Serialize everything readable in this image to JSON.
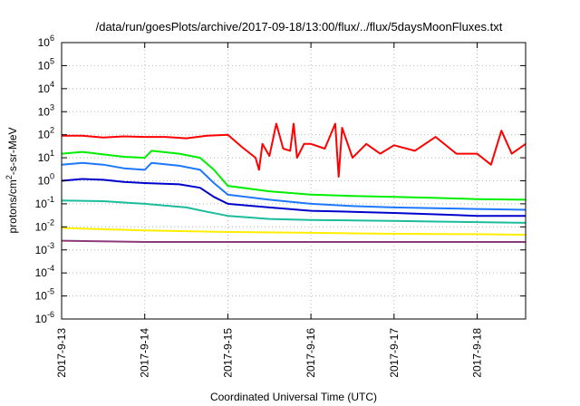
{
  "chart_data": {
    "type": "line",
    "title": "/data/run/goesPlots/archive/2017-09-18/13:00/flux/../flux/5daysMoonFluxes.txt",
    "xlabel": "Coordinated Universal Time (UTC)",
    "ylabel": {
      "pre": "protons/cm",
      "sup": "2",
      "post": "-s-sr-MeV"
    },
    "x_ticks": [
      "2017-9-13",
      "2017-9-14",
      "2017-9-15",
      "2017-9-16",
      "2017-9-17",
      "2017-9-18"
    ],
    "xlim": [
      "2017-09-13 00:00",
      "2017-09-18 14:00"
    ],
    "yscale": "log",
    "ylim": [
      1e-06,
      1000000.0
    ],
    "y_ticks": [
      {
        "base": "10",
        "exp": "-6"
      },
      {
        "base": "10",
        "exp": "-5"
      },
      {
        "base": "10",
        "exp": "-4"
      },
      {
        "base": "10",
        "exp": "-3"
      },
      {
        "base": "10",
        "exp": "-2"
      },
      {
        "base": "10",
        "exp": "-1"
      },
      {
        "base": "10",
        "exp": "0"
      },
      {
        "base": "10",
        "exp": "1"
      },
      {
        "base": "10",
        "exp": "2"
      },
      {
        "base": "10",
        "exp": "3"
      },
      {
        "base": "10",
        "exp": "4"
      },
      {
        "base": "10",
        "exp": "5"
      },
      {
        "base": "10",
        "exp": "6"
      }
    ],
    "grid": true,
    "series": [
      {
        "color": "#ff0000",
        "x": [
          "2017-09-13 00:00",
          "2017-09-13 06:00",
          "2017-09-13 12:00",
          "2017-09-13 18:00",
          "2017-09-14 00:00",
          "2017-09-14 06:00",
          "2017-09-14 12:00",
          "2017-09-14 18:00",
          "2017-09-15 00:00",
          "2017-09-15 04:00",
          "2017-09-15 08:00",
          "2017-09-15 09:00",
          "2017-09-15 10:00",
          "2017-09-15 12:00",
          "2017-09-15 14:00",
          "2017-09-15 16:00",
          "2017-09-15 18:00",
          "2017-09-15 19:00",
          "2017-09-15 20:00",
          "2017-09-15 22:00",
          "2017-09-16 00:00",
          "2017-09-16 04:00",
          "2017-09-16 07:00",
          "2017-09-16 08:00",
          "2017-09-16 09:00",
          "2017-09-16 12:00",
          "2017-09-16 16:00",
          "2017-09-16 20:00",
          "2017-09-17 00:00",
          "2017-09-17 06:00",
          "2017-09-17 12:00",
          "2017-09-17 18:00",
          "2017-09-18 00:00",
          "2017-09-18 04:00",
          "2017-09-18 07:00",
          "2017-09-18 10:00",
          "2017-09-18 14:00"
        ],
        "values": [
          90,
          90,
          75,
          85,
          80,
          80,
          70,
          90,
          100,
          30,
          10,
          3,
          40,
          12,
          300,
          25,
          20,
          300,
          10,
          40,
          40,
          25,
          300,
          1.5,
          200,
          10,
          40,
          15,
          35,
          20,
          80,
          15,
          15,
          5,
          150,
          15,
          40
        ]
      },
      {
        "color": "#00ee00",
        "x": [
          "2017-09-13 00:00",
          "2017-09-13 06:00",
          "2017-09-13 12:00",
          "2017-09-13 18:00",
          "2017-09-14 00:00",
          "2017-09-14 02:00",
          "2017-09-14 10:00",
          "2017-09-14 16:00",
          "2017-09-14 20:00",
          "2017-09-15 00:00",
          "2017-09-15 12:00",
          "2017-09-16 00:00",
          "2017-09-16 12:00",
          "2017-09-17 00:00",
          "2017-09-17 12:00",
          "2017-09-18 00:00",
          "2017-09-18 14:00"
        ],
        "values": [
          15,
          18,
          14,
          11,
          10,
          20,
          15,
          10,
          3,
          0.6,
          0.35,
          0.25,
          0.22,
          0.2,
          0.18,
          0.16,
          0.15
        ]
      },
      {
        "color": "#1e78ff",
        "x": [
          "2017-09-13 00:00",
          "2017-09-13 06:00",
          "2017-09-13 12:00",
          "2017-09-13 18:00",
          "2017-09-14 00:00",
          "2017-09-14 02:00",
          "2017-09-14 10:00",
          "2017-09-14 16:00",
          "2017-09-14 20:00",
          "2017-09-15 00:00",
          "2017-09-15 12:00",
          "2017-09-16 00:00",
          "2017-09-16 12:00",
          "2017-09-17 00:00",
          "2017-09-17 12:00",
          "2017-09-18 00:00",
          "2017-09-18 14:00"
        ],
        "values": [
          5,
          6,
          5,
          3.5,
          3,
          6,
          4.5,
          3,
          0.8,
          0.25,
          0.15,
          0.1,
          0.08,
          0.07,
          0.065,
          0.06,
          0.055
        ]
      },
      {
        "color": "#0000cc",
        "x": [
          "2017-09-13 00:00",
          "2017-09-13 06:00",
          "2017-09-13 12:00",
          "2017-09-13 18:00",
          "2017-09-14 00:00",
          "2017-09-14 10:00",
          "2017-09-14 16:00",
          "2017-09-14 20:00",
          "2017-09-15 00:00",
          "2017-09-15 12:00",
          "2017-09-16 00:00",
          "2017-09-16 12:00",
          "2017-09-17 00:00",
          "2017-09-17 12:00",
          "2017-09-18 00:00",
          "2017-09-18 14:00"
        ],
        "values": [
          1.0,
          1.2,
          1.1,
          0.9,
          0.8,
          0.7,
          0.5,
          0.2,
          0.1,
          0.07,
          0.05,
          0.045,
          0.04,
          0.035,
          0.03,
          0.03
        ]
      },
      {
        "color": "#1abc9c",
        "x": [
          "2017-09-13 00:00",
          "2017-09-13 12:00",
          "2017-09-14 00:00",
          "2017-09-14 12:00",
          "2017-09-14 18:00",
          "2017-09-15 00:00",
          "2017-09-15 12:00",
          "2017-09-16 00:00",
          "2017-09-16 12:00",
          "2017-09-17 00:00",
          "2017-09-17 12:00",
          "2017-09-18 00:00",
          "2017-09-18 14:00"
        ],
        "values": [
          0.14,
          0.13,
          0.1,
          0.07,
          0.045,
          0.03,
          0.022,
          0.02,
          0.019,
          0.018,
          0.017,
          0.016,
          0.015
        ]
      },
      {
        "color": "#ffee00",
        "x": [
          "2017-09-13 00:00",
          "2017-09-14 00:00",
          "2017-09-15 00:00",
          "2017-09-16 00:00",
          "2017-09-17 00:00",
          "2017-09-18 00:00",
          "2017-09-18 14:00"
        ],
        "values": [
          0.009,
          0.007,
          0.006,
          0.0055,
          0.005,
          0.0048,
          0.0045
        ]
      },
      {
        "color": "#8b3a7a",
        "x": [
          "2017-09-13 00:00",
          "2017-09-14 00:00",
          "2017-09-15 00:00",
          "2017-09-16 00:00",
          "2017-09-17 00:00",
          "2017-09-18 00:00",
          "2017-09-18 14:00"
        ],
        "values": [
          0.0025,
          0.0022,
          0.0022,
          0.0022,
          0.0022,
          0.0022,
          0.0022
        ]
      }
    ]
  }
}
